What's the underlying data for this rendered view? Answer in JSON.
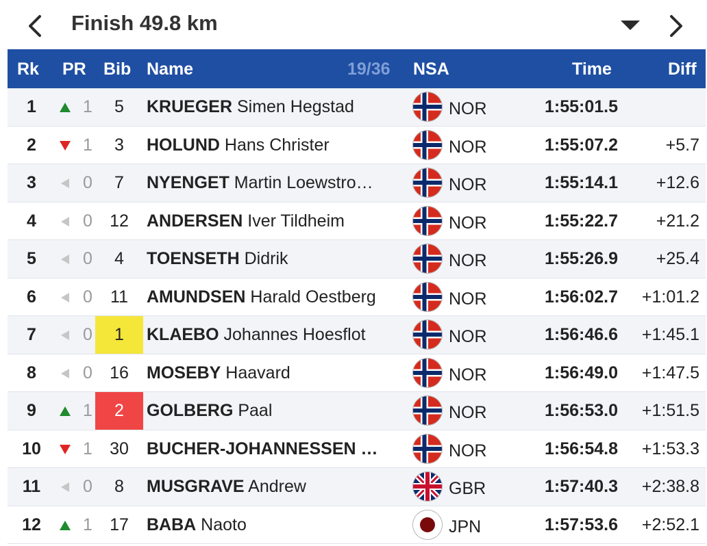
{
  "topbar": {
    "title": "Finish 49.8 km",
    "prev_icon": "chevron-left-icon",
    "next_icon": "chevron-right-icon",
    "dropdown_icon": "triangle-down-icon"
  },
  "header": {
    "rk": "Rk",
    "pr": "PR",
    "bib": "Bib",
    "name": "Name",
    "counter": "19/36",
    "nsa": "NSA",
    "time": "Time",
    "diff": "Diff"
  },
  "colors": {
    "header_bg": "#1f4fa3",
    "counter": "#7f9fd6",
    "up": "#1f8a2e",
    "down": "#e02424",
    "same": "#c6c6c6",
    "bib_yellow": "#f5e63a",
    "bib_red": "#f04545"
  },
  "rows": [
    {
      "rk": "1",
      "trend": "up",
      "pr": "1",
      "bib": "5",
      "bib_style": "",
      "surname": "KRUEGER",
      "given": " Simen Hegstad",
      "flag": "NOR",
      "nsa": "NOR",
      "time": "1:55:01.5",
      "diff": ""
    },
    {
      "rk": "2",
      "trend": "down",
      "pr": "1",
      "bib": "3",
      "bib_style": "",
      "surname": "HOLUND",
      "given": " Hans Christer",
      "flag": "NOR",
      "nsa": "NOR",
      "time": "1:55:07.2",
      "diff": "+5.7"
    },
    {
      "rk": "3",
      "trend": "same",
      "pr": "0",
      "bib": "7",
      "bib_style": "",
      "surname": "NYENGET",
      "given": " Martin Loewstro…",
      "flag": "NOR",
      "nsa": "NOR",
      "time": "1:55:14.1",
      "diff": "+12.6"
    },
    {
      "rk": "4",
      "trend": "same",
      "pr": "0",
      "bib": "12",
      "bib_style": "",
      "surname": "ANDERSEN",
      "given": " Iver Tildheim",
      "flag": "NOR",
      "nsa": "NOR",
      "time": "1:55:22.7",
      "diff": "+21.2"
    },
    {
      "rk": "5",
      "trend": "same",
      "pr": "0",
      "bib": "4",
      "bib_style": "",
      "surname": "TOENSETH",
      "given": " Didrik",
      "flag": "NOR",
      "nsa": "NOR",
      "time": "1:55:26.9",
      "diff": "+25.4"
    },
    {
      "rk": "6",
      "trend": "same",
      "pr": "0",
      "bib": "11",
      "bib_style": "",
      "surname": "AMUNDSEN",
      "given": " Harald Oestberg",
      "flag": "NOR",
      "nsa": "NOR",
      "time": "1:56:02.7",
      "diff": "+1:01.2"
    },
    {
      "rk": "7",
      "trend": "same",
      "pr": "0",
      "bib": "1",
      "bib_style": "yellow",
      "surname": "KLAEBO",
      "given": " Johannes Hoesflot",
      "flag": "NOR",
      "nsa": "NOR",
      "time": "1:56:46.6",
      "diff": "+1:45.1"
    },
    {
      "rk": "8",
      "trend": "same",
      "pr": "0",
      "bib": "16",
      "bib_style": "",
      "surname": "MOSEBY",
      "given": " Haavard",
      "flag": "NOR",
      "nsa": "NOR",
      "time": "1:56:49.0",
      "diff": "+1:47.5"
    },
    {
      "rk": "9",
      "trend": "up",
      "pr": "1",
      "bib": "2",
      "bib_style": "red",
      "surname": "GOLBERG",
      "given": " Paal",
      "flag": "NOR",
      "nsa": "NOR",
      "time": "1:56:53.0",
      "diff": "+1:51.5"
    },
    {
      "rk": "10",
      "trend": "down",
      "pr": "1",
      "bib": "30",
      "bib_style": "",
      "surname": "BUCHER-JOHANNESSEN …",
      "given": "",
      "flag": "NOR",
      "nsa": "NOR",
      "time": "1:56:54.8",
      "diff": "+1:53.3"
    },
    {
      "rk": "11",
      "trend": "same",
      "pr": "0",
      "bib": "8",
      "bib_style": "",
      "surname": "MUSGRAVE",
      "given": " Andrew",
      "flag": "GBR",
      "nsa": "GBR",
      "time": "1:57:40.3",
      "diff": "+2:38.8"
    },
    {
      "rk": "12",
      "trend": "up",
      "pr": "1",
      "bib": "17",
      "bib_style": "",
      "surname": "BABA",
      "given": " Naoto",
      "flag": "JPN",
      "nsa": "JPN",
      "time": "1:57:53.6",
      "diff": "+2:52.1"
    }
  ]
}
